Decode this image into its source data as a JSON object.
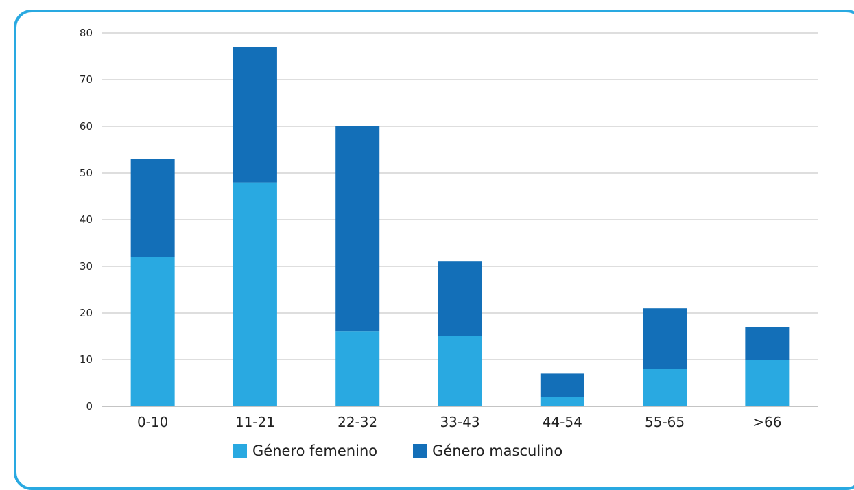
{
  "chart_data": {
    "type": "bar",
    "stacked": true,
    "categories": [
      "0-10",
      "11-21",
      "22-32",
      "33-43",
      "44-54",
      "55-65",
      ">66"
    ],
    "series": [
      {
        "name": "Género femenino",
        "values": [
          32,
          48,
          16,
          15,
          2,
          8,
          10
        ],
        "color": "#29a9e1"
      },
      {
        "name": "Género masculino",
        "values": [
          21,
          29,
          44,
          16,
          5,
          13,
          7
        ],
        "color": "#136fb8"
      }
    ],
    "ylim": [
      0,
      80
    ],
    "yticks": [
      0,
      10,
      20,
      30,
      40,
      50,
      60,
      70,
      80
    ],
    "grid": true,
    "legend_position": "bottom",
    "title": "",
    "xlabel": "",
    "ylabel": ""
  }
}
